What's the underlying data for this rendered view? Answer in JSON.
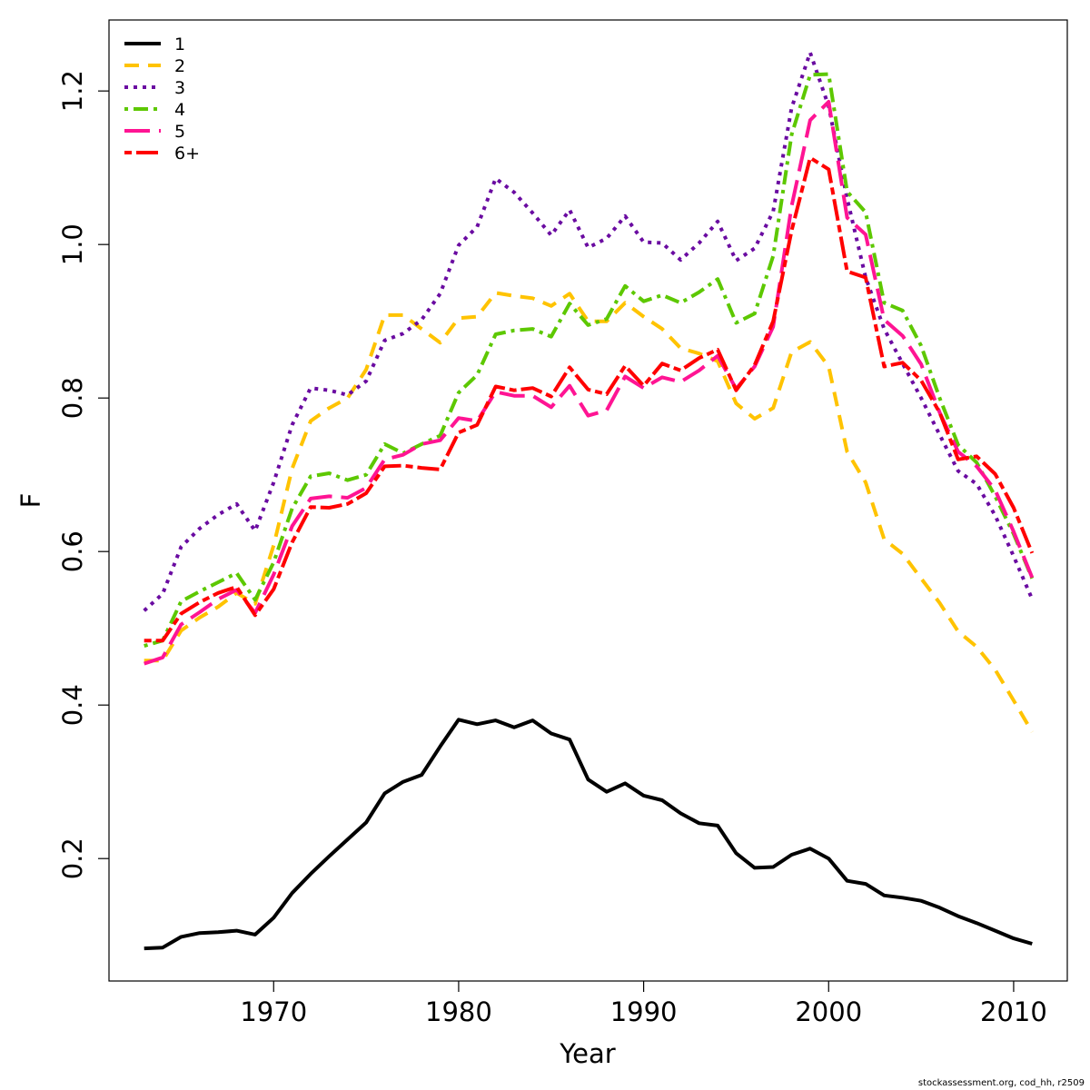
{
  "chart_data": {
    "type": "line",
    "title": "",
    "xlabel": "Year",
    "ylabel": "F",
    "xlim": [
      1961.1,
      2012.9
    ],
    "ylim": [
      0.0405,
      1.2925
    ],
    "x_ticks": [
      1970,
      1980,
      1990,
      2000,
      2010
    ],
    "y_ticks": [
      0.2,
      0.4,
      0.6,
      0.8,
      1.0,
      1.2
    ],
    "x_tick_labels": [
      "1970",
      "1980",
      "1990",
      "2000",
      "2010"
    ],
    "y_tick_labels": [
      "0.2",
      "0.4",
      "0.6",
      "0.8",
      "1.0",
      "1.2"
    ],
    "grid": false,
    "legend_position": "top-left",
    "x": [
      1963,
      1964,
      1965,
      1966,
      1967,
      1968,
      1969,
      1970,
      1971,
      1972,
      1973,
      1974,
      1975,
      1976,
      1977,
      1978,
      1979,
      1980,
      1981,
      1982,
      1983,
      1984,
      1985,
      1986,
      1987,
      1988,
      1989,
      1990,
      1991,
      1992,
      1993,
      1994,
      1995,
      1996,
      1997,
      1998,
      1999,
      2000,
      2001,
      2002,
      2003,
      2004,
      2005,
      2006,
      2007,
      2008,
      2009,
      2010,
      2011
    ],
    "series": [
      {
        "name": "1",
        "color": "#000000",
        "dash": "solid",
        "width": 4,
        "values": [
          0.083,
          0.084,
          0.098,
          0.103,
          0.104,
          0.106,
          0.101,
          0.123,
          0.155,
          0.18,
          0.203,
          0.225,
          0.247,
          0.285,
          0.3,
          0.309,
          0.346,
          0.381,
          0.375,
          0.38,
          0.371,
          0.38,
          0.363,
          0.355,
          0.303,
          0.287,
          0.298,
          0.282,
          0.276,
          0.259,
          0.246,
          0.243,
          0.207,
          0.188,
          0.189,
          0.205,
          0.213,
          0.2,
          0.171,
          0.167,
          0.152,
          0.149,
          0.145,
          0.136,
          0.125,
          0.116,
          0.106,
          0.096,
          0.089
        ]
      },
      {
        "name": "2",
        "color": "#FFC300",
        "dash": "dashed",
        "width": 4,
        "values": [
          0.458,
          0.458,
          0.497,
          0.514,
          0.528,
          0.546,
          0.532,
          0.608,
          0.708,
          0.77,
          0.787,
          0.8,
          0.837,
          0.908,
          0.908,
          0.89,
          0.872,
          0.904,
          0.906,
          0.937,
          0.933,
          0.93,
          0.92,
          0.936,
          0.9,
          0.9,
          0.924,
          0.906,
          0.89,
          0.865,
          0.858,
          0.848,
          0.793,
          0.773,
          0.787,
          0.86,
          0.873,
          0.841,
          0.73,
          0.69,
          0.616,
          0.597,
          0.565,
          0.533,
          0.496,
          0.476,
          0.446,
          0.406,
          0.365
        ]
      },
      {
        "name": "3",
        "color": "#6A0BA1",
        "dash": "dotted",
        "width": 4,
        "values": [
          0.523,
          0.545,
          0.606,
          0.63,
          0.648,
          0.662,
          0.627,
          0.69,
          0.765,
          0.813,
          0.81,
          0.804,
          0.822,
          0.875,
          0.884,
          0.902,
          0.936,
          0.999,
          1.023,
          1.086,
          1.068,
          1.041,
          1.012,
          1.045,
          0.996,
          1.008,
          1.037,
          1.003,
          1.002,
          0.98,
          1.002,
          1.03,
          0.979,
          0.995,
          1.043,
          1.178,
          1.25,
          1.18,
          1.06,
          0.957,
          0.89,
          0.845,
          0.8,
          0.752,
          0.705,
          0.688,
          0.647,
          0.594,
          0.538
        ]
      },
      {
        "name": "4",
        "color": "#5DC800",
        "dash": "dotdash",
        "width": 4,
        "values": [
          0.477,
          0.484,
          0.535,
          0.548,
          0.56,
          0.572,
          0.537,
          0.586,
          0.656,
          0.698,
          0.702,
          0.693,
          0.7,
          0.74,
          0.728,
          0.74,
          0.751,
          0.807,
          0.83,
          0.883,
          0.888,
          0.89,
          0.88,
          0.923,
          0.895,
          0.903,
          0.946,
          0.926,
          0.934,
          0.924,
          0.938,
          0.955,
          0.898,
          0.91,
          0.985,
          1.143,
          1.221,
          1.222,
          1.069,
          1.042,
          0.924,
          0.914,
          0.868,
          0.8,
          0.739,
          0.716,
          0.672,
          0.623,
          0.565
        ]
      },
      {
        "name": "5",
        "color": "#FF1493",
        "dash": "longdash",
        "width": 4,
        "values": [
          0.454,
          0.462,
          0.505,
          0.521,
          0.538,
          0.55,
          0.52,
          0.57,
          0.633,
          0.669,
          0.672,
          0.67,
          0.683,
          0.72,
          0.726,
          0.74,
          0.745,
          0.774,
          0.77,
          0.808,
          0.803,
          0.803,
          0.788,
          0.816,
          0.777,
          0.784,
          0.828,
          0.813,
          0.827,
          0.821,
          0.836,
          0.855,
          0.812,
          0.841,
          0.893,
          1.05,
          1.162,
          1.186,
          1.035,
          1.013,
          0.902,
          0.881,
          0.844,
          0.781,
          0.73,
          0.711,
          0.68,
          0.626,
          0.566
        ]
      },
      {
        "name": "6+",
        "color": "#FF0000",
        "dash": "twodash",
        "width": 4,
        "values": [
          0.484,
          0.484,
          0.519,
          0.534,
          0.546,
          0.554,
          0.517,
          0.551,
          0.612,
          0.658,
          0.657,
          0.662,
          0.676,
          0.711,
          0.712,
          0.709,
          0.707,
          0.755,
          0.765,
          0.815,
          0.81,
          0.813,
          0.802,
          0.84,
          0.811,
          0.805,
          0.842,
          0.816,
          0.845,
          0.836,
          0.852,
          0.863,
          0.81,
          0.843,
          0.9,
          1.018,
          1.113,
          1.098,
          0.965,
          0.957,
          0.841,
          0.846,
          0.823,
          0.781,
          0.72,
          0.724,
          0.701,
          0.657,
          0.598
        ]
      }
    ]
  },
  "footer_text": "stockassessment.org, cod_hh, r2509"
}
